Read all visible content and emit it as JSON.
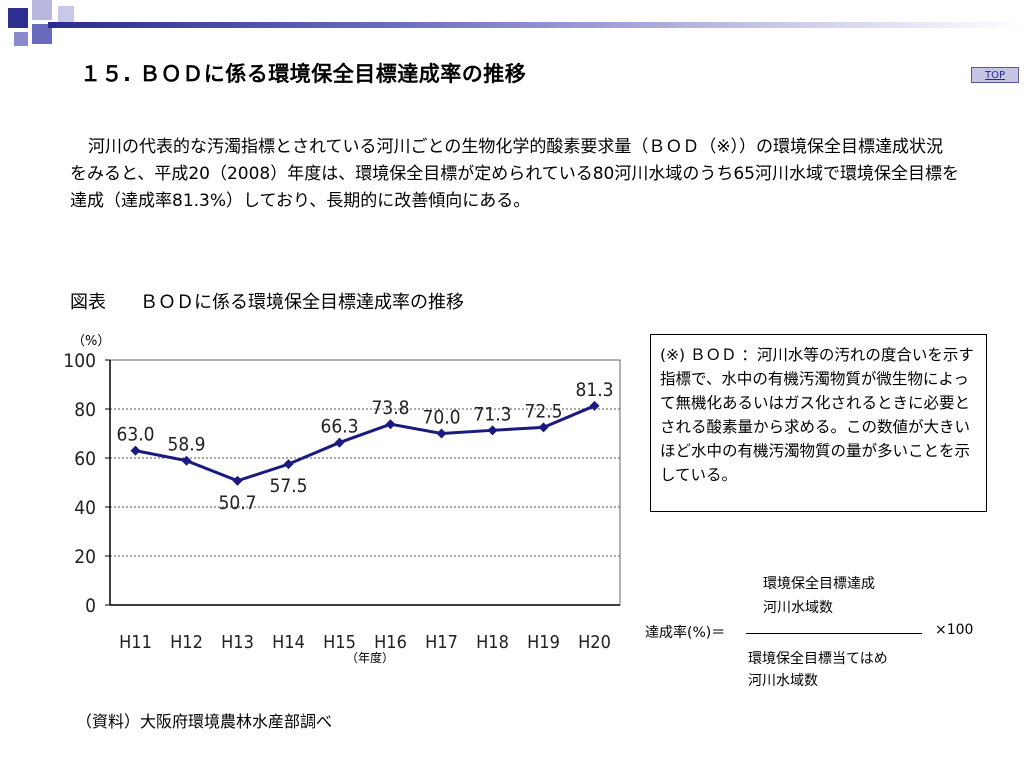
{
  "header": {
    "title": "１５. ＢＯＤに係る環境保全目標達成率の推移",
    "top_link": "TOP"
  },
  "intro_text": "河川の代表的な汚濁指標とされている河川ごとの生物化学的酸素要求量（ＢＯＤ（※））の環境保全目標達成状況をみると、平成20（2008）年度は、環境保全目標が定められている80河川水域のうち65河川水域で環境保全目標を達成（達成率81.3%）しており、長期的に改善傾向にある。",
  "figure": {
    "label": "図表",
    "title": "ＢＯＤに係る環境保全目標達成率の推移"
  },
  "chart_data": {
    "type": "line",
    "title": "",
    "categories": [
      "H11",
      "H12",
      "H13",
      "H14",
      "H15",
      "H16",
      "H17",
      "H18",
      "H19",
      "H20"
    ],
    "series": [
      {
        "name": "",
        "values": [
          63.0,
          58.9,
          50.7,
          57.5,
          66.3,
          73.8,
          70.0,
          71.3,
          72.5,
          81.3
        ]
      }
    ],
    "value_labels": [
      "63.0",
      "58.9",
      "50.7",
      "57.5",
      "66.3",
      "73.8",
      "70.0",
      "71.3",
      "72.5",
      "81.3"
    ],
    "ylabel": "（%）",
    "xlabel": "（年度）",
    "ylim": [
      0,
      100
    ],
    "yticks": [
      0,
      20,
      40,
      60,
      80,
      100
    ],
    "grid": "dotted-horizontal",
    "legend": "none",
    "line_color": "#1a1a80"
  },
  "note": {
    "text": "(※) ＢＯＤ ：河川水等の汚れの度合いを示す指標で、水中の有機汚濁物質が微生物によって無機化あるいはガス化されるときに必要とされる酸素量から求める。この数値が大きいほど水中の有機汚濁物質の量が多いことを示している。"
  },
  "formula": {
    "lhs": "達成率(%)＝",
    "numerator_line1": "環境保全目標達成",
    "numerator_line2": "河川水域数",
    "denominator_line1": "環境保全目標当てはめ",
    "denominator_line2": "河川水域数",
    "multiplier": "×100"
  },
  "source": "（資料）大阪府環境農林水産部調べ"
}
